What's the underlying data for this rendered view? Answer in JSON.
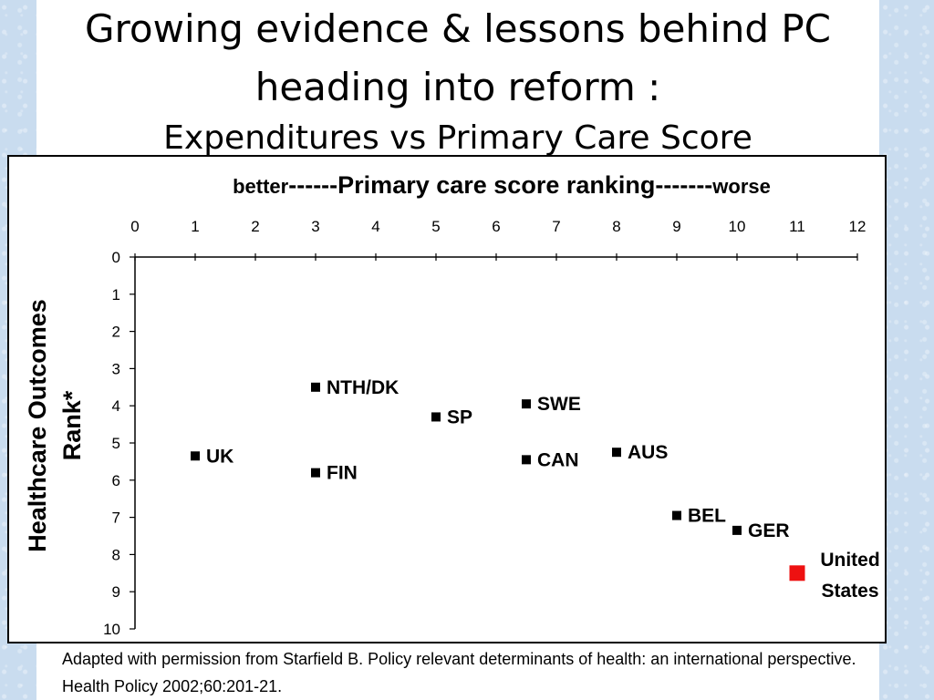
{
  "slide": {
    "title_line1": "Growing evidence & lessons behind PC",
    "title_line2": "heading into reform :",
    "title_line3": "Expenditures vs Primary Care Score",
    "caption": "Adapted with permission from Starfield B. Policy relevant determinants of health: an international perspective. Health Policy 2002;60:201-21."
  },
  "chart_data": {
    "type": "scatter",
    "title_left": "better",
    "title_mid": "------Primary care score ranking-------",
    "title_right": "worse",
    "ylabel_line1": "Healthcare Outcomes",
    "ylabel_line2": "Rank*",
    "xlim": [
      0,
      12
    ],
    "ylim": [
      0,
      10
    ],
    "x_ticks": [
      "0",
      "1",
      "2",
      "3",
      "4",
      "5",
      "6",
      "7",
      "8",
      "9",
      "10",
      "11",
      "12"
    ],
    "y_ticks": [
      "0",
      "1",
      "2",
      "3",
      "4",
      "5",
      "6",
      "7",
      "8",
      "9",
      "10"
    ],
    "y_inverted": true,
    "x_axis_position": "top",
    "points": [
      {
        "label": "UK",
        "x": 1,
        "y": 5.35,
        "color": "#000000"
      },
      {
        "label": "NTH/DK",
        "x": 3,
        "y": 3.5,
        "color": "#000000"
      },
      {
        "label": "FIN",
        "x": 3,
        "y": 5.8,
        "color": "#000000"
      },
      {
        "label": "SP",
        "x": 5,
        "y": 4.3,
        "color": "#000000"
      },
      {
        "label": "SWE",
        "x": 6.5,
        "y": 3.95,
        "color": "#000000"
      },
      {
        "label": "CAN",
        "x": 6.5,
        "y": 5.45,
        "color": "#000000"
      },
      {
        "label": "AUS",
        "x": 8,
        "y": 5.25,
        "color": "#000000"
      },
      {
        "label": "BEL",
        "x": 9,
        "y": 6.95,
        "color": "#000000"
      },
      {
        "label": "GER",
        "x": 10,
        "y": 7.35,
        "color": "#000000"
      },
      {
        "label": "United States",
        "label_lines": [
          "United",
          "States"
        ],
        "x": 11,
        "y": 8.5,
        "color": "#ee1111"
      }
    ]
  }
}
